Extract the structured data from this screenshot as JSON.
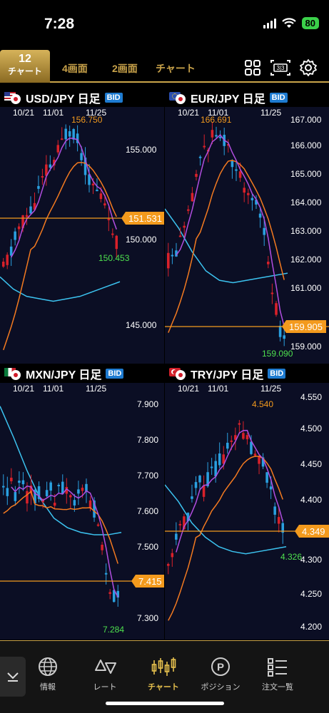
{
  "status_bar": {
    "time": "7:28",
    "battery": "80"
  },
  "toolbar": {
    "tab_active_number": "12",
    "tab_active_label": "チャート",
    "tab_4": "4画面",
    "tab_2": "2画面",
    "tab_chart": "チャート"
  },
  "colors": {
    "accent": "#c8a24a",
    "bid": "#1e7bd0",
    "bg": "#0b0e24",
    "up": "#d9212a",
    "down": "#2aa0e0",
    "ma_short": "#b14ee0",
    "ma_mid": "#f47a20",
    "ma_long": "#3cc3f0",
    "price_tag": "#f39a1d",
    "low_label": "#4ee04e"
  },
  "panels": [
    {
      "symbol": "USD/JPY 日足",
      "bid": "BID",
      "dates": [
        "10/21",
        "11/01",
        "11/25"
      ],
      "high_label": "156.750",
      "low_label": "150.453",
      "current": "151.531",
      "ticks": [
        "155.000",
        "150.000",
        "145.000"
      ]
    },
    {
      "symbol": "EUR/JPY 日足",
      "bid": "BID",
      "dates": [
        "10/21",
        "11/01",
        "11/25"
      ],
      "high_label": "166.691",
      "low_label": "159.090",
      "current": "159.905",
      "ticks": [
        "167.000",
        "166.000",
        "165.000",
        "164.000",
        "163.000",
        "162.000",
        "161.000",
        "159.000"
      ]
    },
    {
      "symbol": "MXN/JPY 日足",
      "bid": "BID",
      "dates": [
        "10/21",
        "11/01",
        "11/25"
      ],
      "high_label": "",
      "low_label": "7.284",
      "current": "7.415",
      "ticks": [
        "7.900",
        "7.800",
        "7.700",
        "7.600",
        "7.500",
        "7.300"
      ]
    },
    {
      "symbol": "TRY/JPY 日足",
      "bid": "BID",
      "dates": [
        "10/21",
        "11/01",
        "11/25"
      ],
      "high_label": "4.540",
      "low_label": "4.326",
      "current": "4.349",
      "ticks": [
        "4.550",
        "4.500",
        "4.450",
        "4.400",
        "4.300",
        "4.250",
        "4.200"
      ]
    }
  ],
  "bottom_nav": [
    {
      "label": "情報",
      "icon": "globe-icon"
    },
    {
      "label": "レート",
      "icon": "rate-icon"
    },
    {
      "label": "チャート",
      "icon": "candlestick-icon"
    },
    {
      "label": "ポジション",
      "icon": "position-icon"
    },
    {
      "label": "注文一覧",
      "icon": "order-list-icon"
    }
  ]
}
